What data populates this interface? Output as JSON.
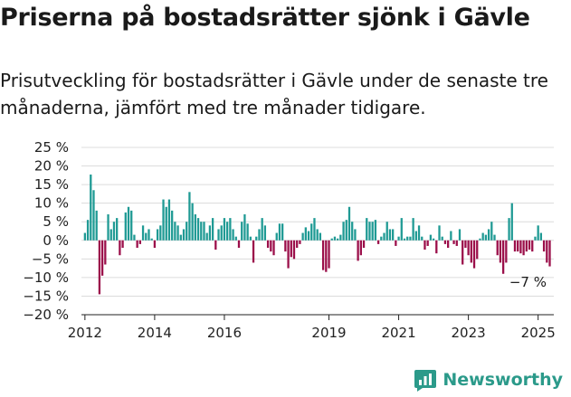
{
  "title": "Priserna på bostadsrätter sjönk i Gävle",
  "subtitle": "Prisutveckling för bostadsrätter i Gävle under de senaste tre månaderna, jämfört med tre månader tidigare.",
  "brand": {
    "name": "Newsworthy",
    "icon": "newsworthy-logo-icon"
  },
  "colors": {
    "positive": "#1f9a94",
    "negative": "#9b0f4a",
    "grid": "#dcdcdc",
    "axis": "#222222"
  },
  "chart_data": {
    "type": "bar",
    "xlabel": "",
    "ylabel": "",
    "ylim": [
      -20,
      25
    ],
    "ytick_values": [
      25,
      20,
      15,
      10,
      5,
      0,
      -5,
      -10,
      -15,
      -20
    ],
    "ytick_labels": [
      "25 %",
      "20 %",
      "15 %",
      "10 %",
      "5 %",
      "0 %",
      "−5 %",
      "−10 %",
      "−15 %",
      "−20 %"
    ],
    "xtick_labels": [
      "2012",
      "2014",
      "2016",
      "2019",
      "2021",
      "2023",
      "2025"
    ],
    "xtick_positions": [
      2012,
      2014,
      2016,
      2019,
      2021,
      2023,
      2025
    ],
    "x_range": [
      2011.9,
      2025.45
    ],
    "grid": true,
    "annotation": "−7 %",
    "start_year": 2012,
    "points_per_year": 12,
    "values": [
      2,
      5.5,
      17.7,
      13.5,
      8,
      -14.5,
      -9.5,
      -6.5,
      7,
      3,
      5,
      6,
      -4,
      -2,
      7.5,
      9,
      8,
      1.5,
      -2,
      -1,
      4,
      2,
      3,
      0.5,
      -2,
      3,
      4,
      11,
      9,
      11,
      8,
      5,
      4,
      1.5,
      3,
      5,
      13,
      10,
      7,
      6,
      5,
      5,
      2,
      4,
      6,
      -2.5,
      3,
      4,
      6,
      5,
      6,
      3,
      1,
      -2,
      5,
      7,
      4.5,
      1,
      -6,
      1,
      3,
      6,
      4,
      -2,
      -3,
      -4,
      2,
      4.5,
      4.5,
      -3,
      -7.5,
      -4.5,
      -5,
      -2,
      -1,
      2,
      3.5,
      2.5,
      4.5,
      6,
      3,
      2,
      -8,
      -8.5,
      -7.5,
      0.5,
      1,
      0.5,
      1.5,
      5,
      5.5,
      9,
      5,
      3,
      -5.5,
      -4,
      -2,
      6,
      5,
      5,
      5.5,
      -1,
      1,
      2,
      5,
      3,
      3,
      -1.5,
      1,
      6,
      0.5,
      1,
      1,
      6,
      2.5,
      4,
      1,
      -2.5,
      -1.5,
      1.5,
      0.5,
      -3.5,
      4,
      1,
      -1,
      -2,
      2.5,
      -1,
      -1.5,
      3,
      -6.5,
      -2,
      -4,
      -6,
      -7.5,
      -5,
      0.5,
      2,
      1.5,
      3,
      5,
      1.5,
      -4,
      -6,
      -9,
      -6,
      6,
      10,
      -3,
      -3,
      -3.5,
      -4,
      -3,
      -2.5,
      -3,
      1,
      4,
      2,
      -3,
      -6,
      -7
    ]
  }
}
